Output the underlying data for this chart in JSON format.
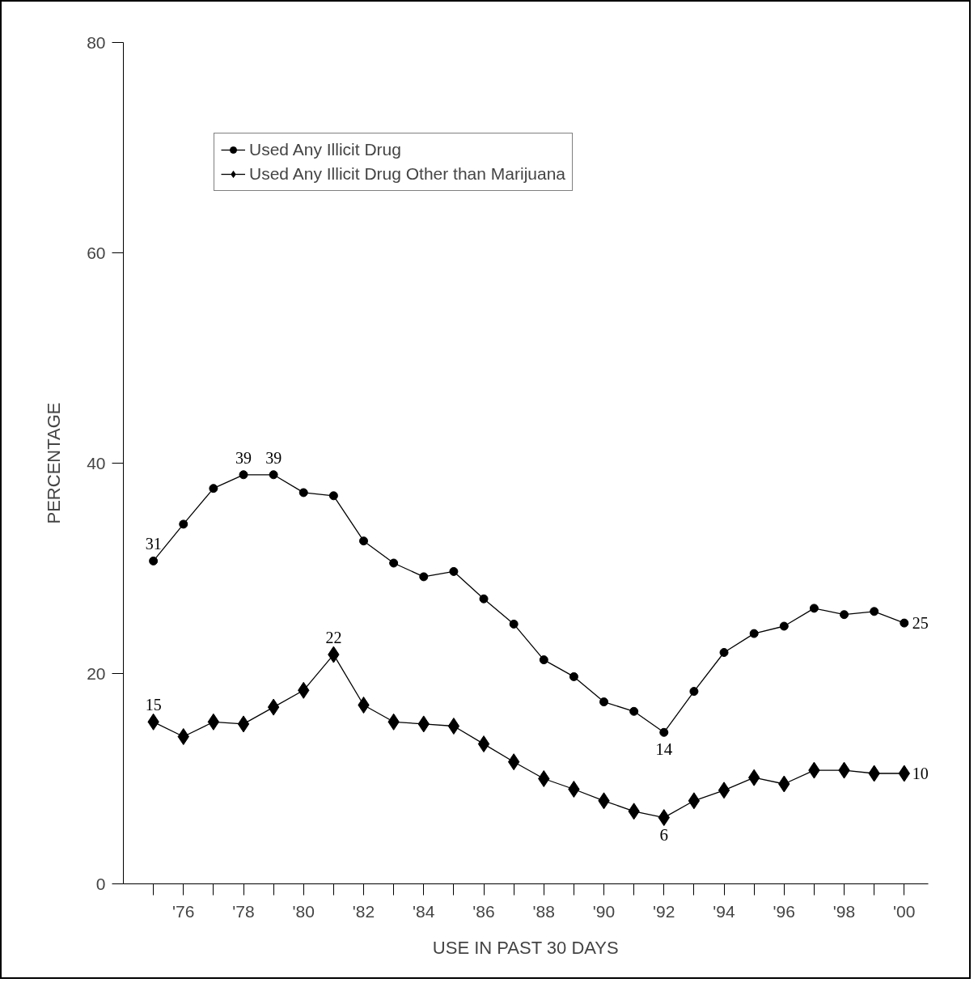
{
  "chart_data": {
    "type": "line",
    "xlabel": "USE IN PAST 30 DAYS",
    "ylabel": "PERCENTAGE",
    "x": [
      1975,
      1976,
      1977,
      1978,
      1979,
      1980,
      1981,
      1982,
      1983,
      1984,
      1985,
      1986,
      1987,
      1988,
      1989,
      1990,
      1991,
      1992,
      1993,
      1994,
      1995,
      1996,
      1997,
      1998,
      1999,
      2000
    ],
    "series": [
      {
        "name": "Used Any Illicit Drug",
        "color": "#000000",
        "marker": "circle",
        "values": [
          30.7,
          34.2,
          37.6,
          38.9,
          38.9,
          37.2,
          36.9,
          32.6,
          30.5,
          29.2,
          29.7,
          27.1,
          24.7,
          21.3,
          19.7,
          17.3,
          16.4,
          14.4,
          18.3,
          22.0,
          23.8,
          24.5,
          26.2,
          25.6,
          25.9,
          24.8
        ],
        "value_labels": [
          "31",
          null,
          null,
          "39",
          "39",
          null,
          null,
          null,
          null,
          null,
          null,
          null,
          null,
          null,
          null,
          null,
          null,
          "14",
          null,
          null,
          null,
          null,
          null,
          null,
          null,
          "25"
        ]
      },
      {
        "name": "Used Any Illicit Drug Other than Marijuana",
        "color": "#000000",
        "marker": "diamond",
        "values": [
          15.4,
          14.0,
          15.4,
          15.2,
          16.8,
          18.4,
          21.8,
          17.0,
          15.4,
          15.2,
          15.0,
          13.3,
          11.6,
          10.0,
          9.0,
          7.9,
          6.9,
          6.3,
          7.9,
          8.9,
          10.1,
          9.5,
          10.8,
          10.8,
          10.5,
          10.5
        ],
        "value_labels": [
          "15",
          null,
          null,
          null,
          null,
          null,
          "22",
          null,
          null,
          null,
          null,
          null,
          null,
          null,
          null,
          null,
          null,
          "6",
          null,
          null,
          null,
          null,
          null,
          null,
          null,
          "10"
        ]
      }
    ],
    "xlim": [
      1974,
      2000.8
    ],
    "xticks": [
      {
        "value": 1975,
        "label": null
      },
      {
        "value": 1976,
        "label": "'76"
      },
      {
        "value": 1977,
        "label": null
      },
      {
        "value": 1978,
        "label": "'78"
      },
      {
        "value": 1979,
        "label": null
      },
      {
        "value": 1980,
        "label": "'80"
      },
      {
        "value": 1981,
        "label": null
      },
      {
        "value": 1982,
        "label": "'82"
      },
      {
        "value": 1983,
        "label": null
      },
      {
        "value": 1984,
        "label": "'84"
      },
      {
        "value": 1985,
        "label": null
      },
      {
        "value": 1986,
        "label": "'86"
      },
      {
        "value": 1987,
        "label": null
      },
      {
        "value": 1988,
        "label": "'88"
      },
      {
        "value": 1989,
        "label": null
      },
      {
        "value": 1990,
        "label": "'90"
      },
      {
        "value": 1991,
        "label": null
      },
      {
        "value": 1992,
        "label": "'92"
      },
      {
        "value": 1993,
        "label": null
      },
      {
        "value": 1994,
        "label": "'94"
      },
      {
        "value": 1995,
        "label": null
      },
      {
        "value": 1996,
        "label": "'96"
      },
      {
        "value": 1997,
        "label": null
      },
      {
        "value": 1998,
        "label": "'98"
      },
      {
        "value": 1999,
        "label": null
      },
      {
        "value": 2000,
        "label": "'00"
      }
    ],
    "ylim": [
      0,
      80
    ],
    "yticks": [
      0,
      20,
      40,
      60,
      80
    ],
    "grid": false,
    "legend": "top left",
    "line_style": "solid"
  }
}
